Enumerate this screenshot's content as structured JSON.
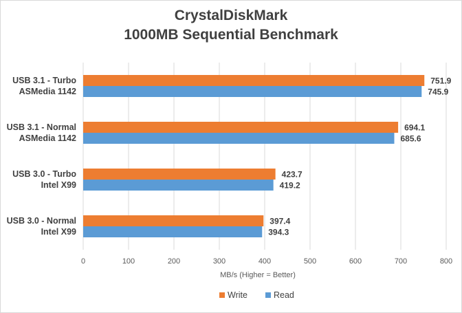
{
  "chart_data": {
    "type": "bar",
    "orientation": "horizontal",
    "title": "CrystalDiskMark",
    "subtitle": "1000MB Sequential Benchmark",
    "xlabel": "MB/s (Higher = Better)",
    "ylabel": "",
    "xlim": [
      0,
      800
    ],
    "xticks": [
      0,
      100,
      200,
      300,
      400,
      500,
      600,
      700,
      800
    ],
    "grid": true,
    "legend_position": "bottom",
    "categories": [
      [
        "USB 3.1 - Turbo",
        "ASMedia 1142"
      ],
      [
        "USB 3.1 - Normal",
        "ASMedia 1142"
      ],
      [
        "USB 3.0 - Turbo",
        "Intel X99"
      ],
      [
        "USB 3.0 - Normal",
        "Intel X99"
      ]
    ],
    "series": [
      {
        "name": "Write",
        "color": "#ED7D31",
        "values": [
          751.9,
          694.1,
          423.7,
          397.4
        ]
      },
      {
        "name": "Read",
        "color": "#5B9BD5",
        "values": [
          745.9,
          685.6,
          419.2,
          394.3
        ]
      }
    ]
  }
}
